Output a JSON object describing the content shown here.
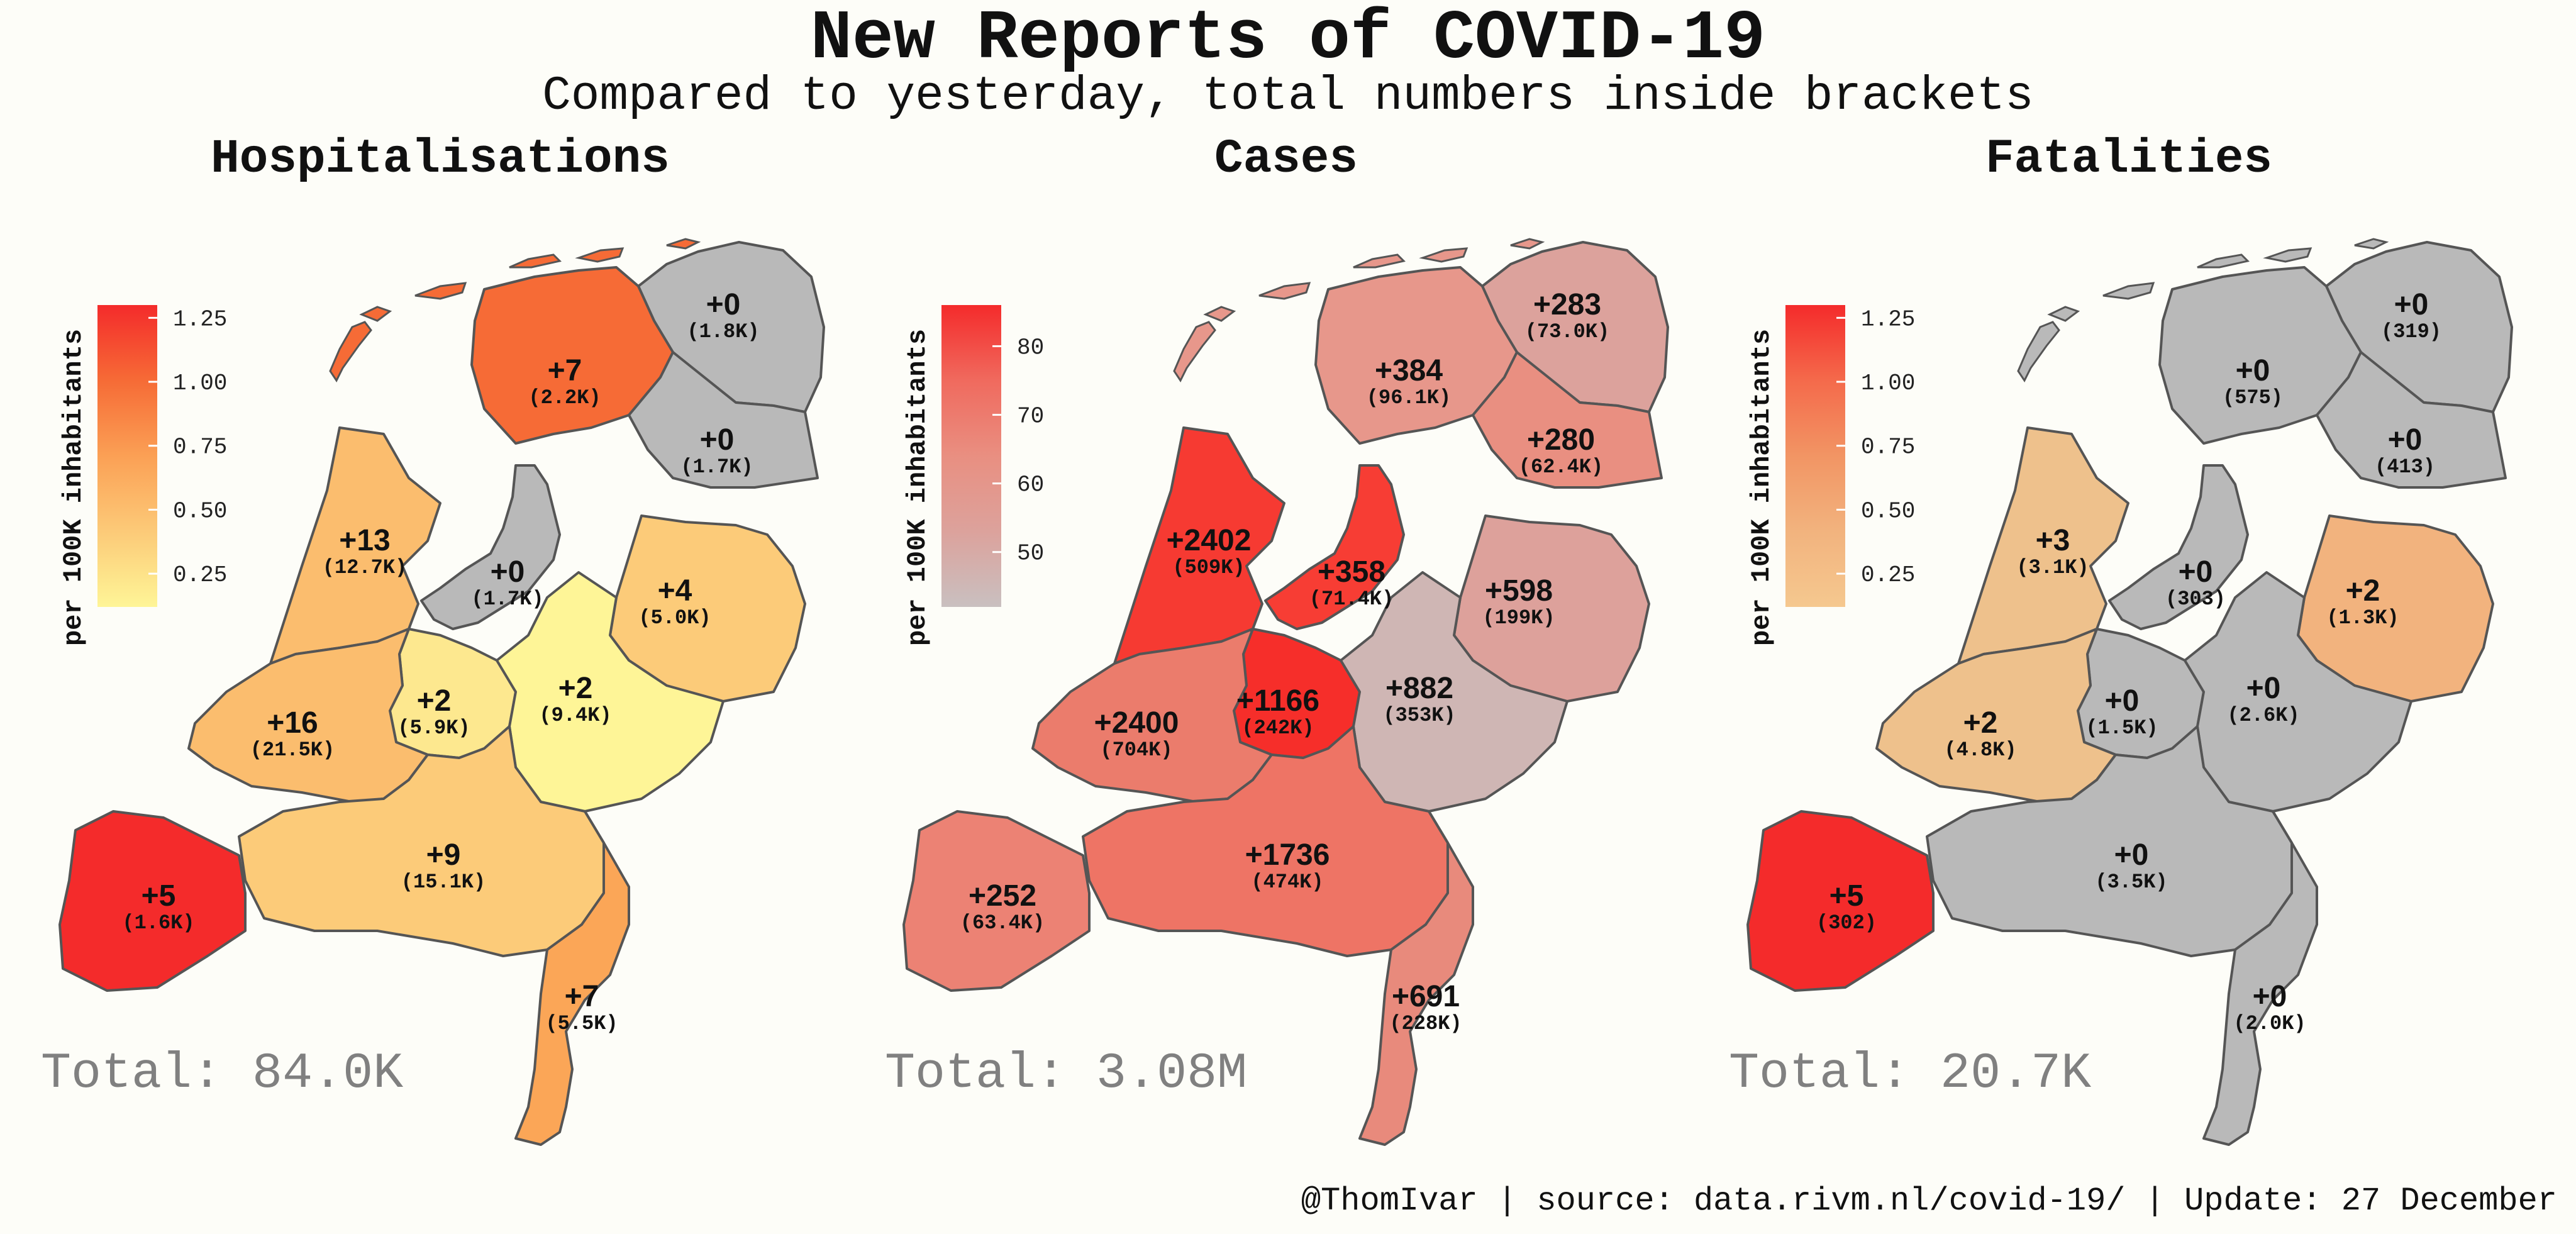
{
  "title": "New Reports of COVID-19",
  "subtitle": "Compared to yesterday, total numbers inside brackets",
  "footer": "@ThomIvar | source: data.rivm.nl/covid-19/ | Update: 27 December",
  "legend_title": "per 100K inhabitants",
  "chart_data": [
    {
      "type": "map",
      "title": "Hospitalisations",
      "total": "Total: 84.0K",
      "legend_ticks": [
        "1.25",
        "1.00",
        "0.75",
        "0.50",
        "0.25"
      ],
      "legend_range": [
        0.12,
        1.3
      ],
      "regions": [
        {
          "new": "+0",
          "total": "(1.8K)",
          "color": "#b9b9b9"
        },
        {
          "new": "+7",
          "total": "(2.2K)",
          "color": "#f66b36"
        },
        {
          "new": "+0",
          "total": "(1.7K)",
          "color": "#b9b9b9"
        },
        {
          "new": "+13",
          "total": "(12.7K)",
          "color": "#fbbd6e"
        },
        {
          "new": "+0",
          "total": "(1.7K)",
          "color": "#b9b9b9"
        },
        {
          "new": "+4",
          "total": "(5.0K)",
          "color": "#fccb79"
        },
        {
          "new": "+2",
          "total": "(5.9K)",
          "color": "#fde88f"
        },
        {
          "new": "+2",
          "total": "(9.4K)",
          "color": "#fef597"
        },
        {
          "new": "+16",
          "total": "(21.5K)",
          "color": "#fbbd6e"
        },
        {
          "new": "+9",
          "total": "(15.1K)",
          "color": "#fccb79"
        },
        {
          "new": "+5",
          "total": "(1.6K)",
          "color": "#f42b2b"
        },
        {
          "new": "+7",
          "total": "(5.5K)",
          "color": "#fba657"
        }
      ]
    },
    {
      "type": "map",
      "title": "Cases",
      "total": "Total: 3.08M",
      "legend_ticks": [
        "80",
        "70",
        "60",
        "50"
      ],
      "legend_range": [
        42,
        86
      ],
      "regions": [
        {
          "new": "+283",
          "total": "(73.0K)",
          "color": "#dca29c"
        },
        {
          "new": "+384",
          "total": "(96.1K)",
          "color": "#e7978b"
        },
        {
          "new": "+280",
          "total": "(62.4K)",
          "color": "#e98f81"
        },
        {
          "new": "+2402",
          "total": "(509K)",
          "color": "#f63a32"
        },
        {
          "new": "+358",
          "total": "(71.4K)",
          "color": "#f73d34"
        },
        {
          "new": "+598",
          "total": "(199K)",
          "color": "#dda19b"
        },
        {
          "new": "+1166",
          "total": "(242K)",
          "color": "#f62e2a"
        },
        {
          "new": "+882",
          "total": "(353K)",
          "color": "#cfb6b4"
        },
        {
          "new": "+2400",
          "total": "(704K)",
          "color": "#eb7c6c"
        },
        {
          "new": "+1736",
          "total": "(474K)",
          "color": "#ee7465"
        },
        {
          "new": "+252",
          "total": "(63.4K)",
          "color": "#ec8274"
        },
        {
          "new": "+691",
          "total": "(228K)",
          "color": "#e88a7c"
        }
      ]
    },
    {
      "type": "map",
      "title": "Fatalities",
      "total": "Total: 20.7K",
      "legend_ticks": [
        "1.25",
        "1.00",
        "0.75",
        "0.50",
        "0.25"
      ],
      "legend_range": [
        0.12,
        1.3
      ],
      "regions": [
        {
          "new": "+0",
          "total": "(319)",
          "color": "#b9b9b9"
        },
        {
          "new": "+0",
          "total": "(575)",
          "color": "#b9b9b9"
        },
        {
          "new": "+0",
          "total": "(413)",
          "color": "#b9b9b9"
        },
        {
          "new": "+3",
          "total": "(3.1K)",
          "color": "#eec18c"
        },
        {
          "new": "+0",
          "total": "(303)",
          "color": "#b9b9b9"
        },
        {
          "new": "+2",
          "total": "(1.3K)",
          "color": "#f2b37e"
        },
        {
          "new": "+0",
          "total": "(1.5K)",
          "color": "#b9b9b9"
        },
        {
          "new": "+0",
          "total": "(2.6K)",
          "color": "#b9b9b9"
        },
        {
          "new": "+2",
          "total": "(4.8K)",
          "color": "#eec18c"
        },
        {
          "new": "+0",
          "total": "(3.5K)",
          "color": "#b9b9b9"
        },
        {
          "new": "+5",
          "total": "(302)",
          "color": "#f42b2b"
        },
        {
          "new": "+0",
          "total": "(2.0K)",
          "color": "#b9b9b9"
        }
      ]
    }
  ]
}
